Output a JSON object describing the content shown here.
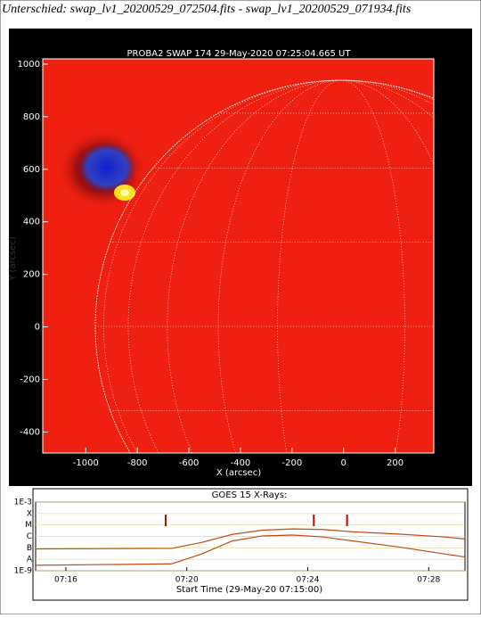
{
  "window_title": "Unterschied: swap_lv1_20200529_072504.fits - swap_lv1_20200529_071934.fits",
  "image_plot": {
    "title": "PROBA2 SWAP 174 29-May-2020 07:25:04.665 UT",
    "x_label": "X (arcsec)",
    "y_label": "Y (arcsec)",
    "xlim": [
      -1167,
      350
    ],
    "ylim": [
      -480,
      1020
    ],
    "xticks": [
      -1000,
      -800,
      -600,
      -400,
      -200,
      0,
      200
    ],
    "yticks": [
      1000,
      800,
      600,
      400,
      200,
      0,
      -200,
      -400
    ]
  },
  "goes_plot": {
    "title": "GOES 15 X-Rays:",
    "x_label": "Start Time (29-May-20 07:15:00)",
    "log_scale": true,
    "xlim": [
      0,
      14.2
    ],
    "ylim": [
      1e-09,
      0.001
    ],
    "xticks": [
      {
        "value": 1,
        "label": "07:16"
      },
      {
        "value": 5,
        "label": "07:20"
      },
      {
        "value": 9,
        "label": "07:24"
      },
      {
        "value": 13,
        "label": "07:28"
      }
    ],
    "yticks": [
      {
        "value": 0.001,
        "label": "1E-3"
      },
      {
        "value": 0.0001,
        "label": "X"
      },
      {
        "value": 1e-05,
        "label": "M"
      },
      {
        "value": 1e-06,
        "label": "C"
      },
      {
        "value": 1e-07,
        "label": "B"
      },
      {
        "value": 1e-08,
        "label": "A"
      },
      {
        "value": 1e-09,
        "label": "1E-9"
      }
    ],
    "grid": true,
    "markers_x": [
      4.3,
      9.2,
      10.3
    ],
    "marker_color": "#cc0000",
    "series": [
      {
        "color": "#c04a10",
        "x": [
          0,
          4.5,
          5.5,
          6.5,
          7.5,
          8.5,
          9.5,
          10.5,
          12,
          13.5,
          14.2
        ],
        "values": [
          8e-08,
          9e-08,
          3e-07,
          1.5e-06,
          3.5e-06,
          4.5e-06,
          4e-06,
          2.5e-06,
          1.6e-06,
          9e-07,
          6e-07
        ]
      },
      {
        "color": "#c04a10",
        "x": [
          0,
          4.5,
          5.5,
          6.5,
          7.5,
          8.5,
          9.5,
          10.5,
          12,
          13.5,
          14.2
        ],
        "values": [
          3e-09,
          4e-09,
          3e-08,
          4e-07,
          1.1e-06,
          1.3e-06,
          9e-07,
          4e-07,
          1.2e-07,
          3e-08,
          1.6e-08
        ]
      }
    ]
  }
}
